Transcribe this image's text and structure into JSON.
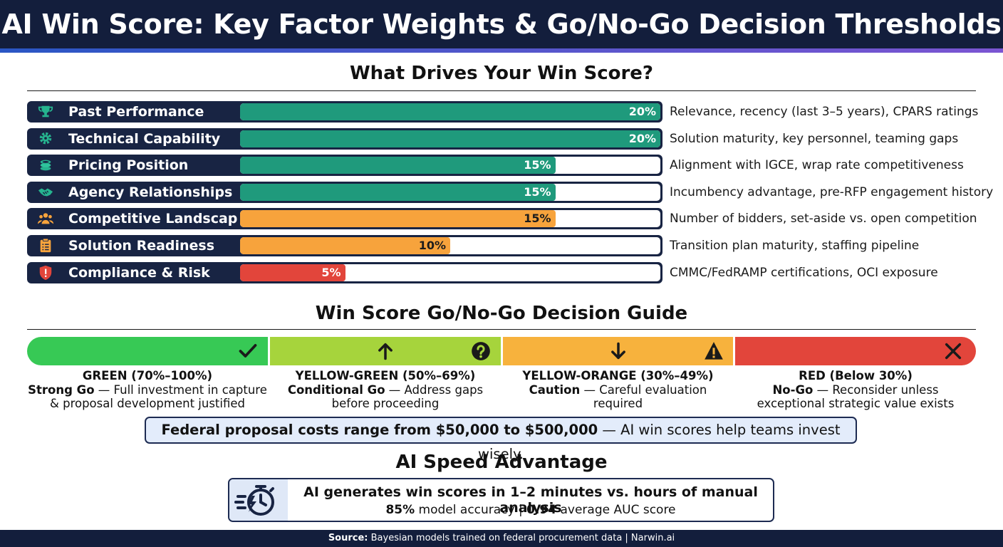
{
  "header": {
    "title": "AI Win Score: Key Factor Weights & Go/No-Go Decision Thresholds"
  },
  "factors_section": {
    "title": "What Drives Your Win Score?"
  },
  "colors": {
    "teal": "#1f9a7c",
    "orange": "#f7a33c",
    "red": "#e2453b",
    "navy": "#182443"
  },
  "chart_data": {
    "type": "bar",
    "title": "What Drives Your Win Score?",
    "categories": [
      "Past Performance",
      "Technical Capability",
      "Pricing Position",
      "Agency Relationships",
      "Competitive Landscape",
      "Solution Readiness",
      "Compliance & Risk"
    ],
    "values": [
      20,
      20,
      15,
      15,
      15,
      10,
      5
    ],
    "value_labels": [
      "20%",
      "20%",
      "15%",
      "15%",
      "15%",
      "10%",
      "5%"
    ],
    "descriptions": [
      "Relevance, recency (last 3–5 years), CPARS ratings",
      "Solution maturity, key personnel, teaming gaps",
      "Alignment with IGCE, wrap rate competitiveness",
      "Incumbency advantage, pre-RFP engagement history",
      "Number of bidders, set-aside vs. open competition",
      "Transition plan maturity, staffing pipeline",
      "CMMC/FedRAMP certifications, OCI exposure"
    ],
    "bar_colors": [
      "#1f9a7c",
      "#1f9a7c",
      "#1f9a7c",
      "#1f9a7c",
      "#f7a33c",
      "#f7a33c",
      "#e2453b"
    ],
    "icons": [
      "trophy-icon",
      "gear-icon",
      "coins-icon",
      "handshake-icon",
      "people-icon",
      "clipboard-icon",
      "shield-alert-icon"
    ],
    "xlim": [
      0,
      20
    ]
  },
  "decision": {
    "title": "Win Score Go/No-Go Decision Guide",
    "zones": [
      {
        "heading": "GREEN (70%–100%)",
        "verdict": "Strong Go",
        "rest": " — Full investment in capture",
        "line3": "& proposal development justified",
        "color": "#37c955",
        "icons": [
          "check-icon"
        ]
      },
      {
        "heading": "YELLOW-GREEN (50%–69%)",
        "verdict": "Conditional Go",
        "rest": " — Address gaps",
        "line3": "before proceeding",
        "color": "#a6d43c",
        "icons": [
          "arrow-up-icon",
          "question-icon"
        ]
      },
      {
        "heading": "YELLOW-ORANGE (30%–49%)",
        "verdict": "Caution",
        "rest": " — Careful evaluation",
        "line3": "required",
        "color": "#f7b23d",
        "icons": [
          "arrow-down-icon",
          "warning-icon"
        ]
      },
      {
        "heading": "RED (Below 30%)",
        "verdict": "No-Go",
        "rest": " — Reconsider unless",
        "line3": "exceptional strategic value exists",
        "color": "#e2453b",
        "icons": [
          "x-icon"
        ]
      }
    ]
  },
  "callout": {
    "bold": "Federal proposal costs range from $50,000 to $500,000",
    "rest": " — AI win scores help teams invest wisely."
  },
  "speed": {
    "title": "AI Speed Advantage",
    "line1": "AI generates win scores in 1–2 minutes vs. hours of manual analysis",
    "acc_value": "85%",
    "acc_label": " model accuracy | ",
    "auc_value": "0.94",
    "auc_label": " average AUC score"
  },
  "footer": {
    "label": "Source:",
    "text": " Bayesian models trained on federal procurement data | Narwin.ai"
  }
}
